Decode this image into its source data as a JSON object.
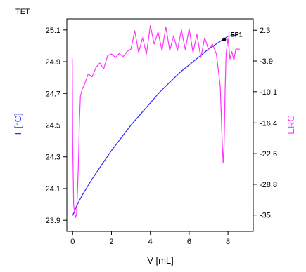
{
  "header": {
    "title": "TET"
  },
  "chart_data": {
    "type": "line",
    "title": "TET",
    "xlabel": "V [mL]",
    "ylabel": "T [°C]",
    "y2label": "ERC",
    "xlim": [
      -0.3,
      9.3
    ],
    "ylim": [
      23.83,
      25.17
    ],
    "y2lim": [
      -38.3,
      4.6
    ],
    "x_ticks": [
      "0",
      "2",
      "4",
      "6",
      "8"
    ],
    "x_tick_values": [
      0,
      2,
      4,
      6,
      8
    ],
    "y_ticks": [
      "25.1",
      "24.9",
      "24.7",
      "24.5",
      "24.3",
      "24.1",
      "23.9"
    ],
    "y_tick_values": [
      25.1,
      24.9,
      24.7,
      24.5,
      24.3,
      24.1,
      23.9
    ],
    "y2_ticks": [
      "2.3",
      "-3.9",
      "-10.1",
      "-16.4",
      "-22.6",
      "-28.8",
      "-35"
    ],
    "y2_tick_values": [
      2.3,
      -3.9,
      -10.1,
      -16.4,
      -22.6,
      -28.8,
      -35
    ],
    "grid": false,
    "colors": {
      "T": "#2a2aff",
      "ERC": "#ff33ff",
      "axis": "#000000"
    },
    "annotation": {
      "text": "EP1",
      "x": 7.8,
      "y": 25.04
    },
    "series": [
      {
        "axis": "left",
        "color": "#2a2aff",
        "x": [
          0,
          0.2,
          0.5,
          1,
          1.5,
          2,
          2.5,
          3,
          3.5,
          4,
          4.5,
          5,
          5.5,
          6,
          6.5,
          7,
          7.5,
          8,
          8.5
        ],
        "y": [
          23.93,
          23.99,
          24.06,
          24.16,
          24.25,
          24.34,
          24.42,
          24.5,
          24.57,
          24.64,
          24.71,
          24.77,
          24.83,
          24.88,
          24.93,
          24.98,
          25.02,
          25.06,
          25.07
        ]
      },
      {
        "axis": "right",
        "color": "#ff33ff",
        "x": [
          -0.02,
          0,
          0.05,
          0.1,
          0.15,
          0.2,
          0.25,
          0.3,
          0.35,
          0.4,
          0.5,
          0.6,
          0.8,
          1.0,
          1.2,
          1.4,
          1.6,
          1.8,
          2.0,
          2.2,
          2.4,
          2.6,
          2.8,
          3.0,
          3.2,
          3.4,
          3.6,
          3.8,
          4.0,
          4.2,
          4.4,
          4.6,
          4.8,
          5.0,
          5.2,
          5.4,
          5.6,
          5.8,
          6.0,
          6.2,
          6.4,
          6.6,
          6.8,
          7.0,
          7.2,
          7.4,
          7.6,
          7.7,
          7.75,
          7.8,
          7.85,
          7.9,
          8.0,
          8.1,
          8.2,
          8.3,
          8.4,
          8.6
        ],
        "y": [
          -3.4,
          -20,
          -33,
          -34.5,
          -35.5,
          -34.8,
          -30,
          -24,
          -16,
          -11,
          -9.5,
          -8.7,
          -6.5,
          -7.1,
          -5.2,
          -4.3,
          -5.5,
          -2.8,
          -2.5,
          -3.2,
          -2.4,
          -3.0,
          -2.0,
          -1.5,
          2.2,
          -2.2,
          0.8,
          -2.5,
          3.3,
          -0.5,
          2.0,
          -1.8,
          3.0,
          -1.8,
          1.2,
          -1.8,
          2.4,
          -1.6,
          2.6,
          -2.2,
          1.5,
          -3.2,
          0.8,
          -1.6,
          -0.5,
          -2.5,
          -9,
          -20,
          -24.5,
          -21,
          -10,
          -2.4,
          0.7,
          -3.5,
          -2.0,
          -3.8,
          -1.5,
          -1.5
        ]
      }
    ]
  }
}
